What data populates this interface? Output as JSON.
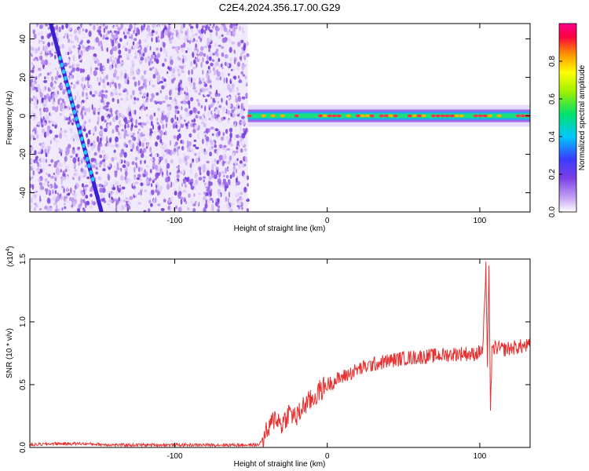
{
  "title": "C2E4.2024.356.17.00.G29",
  "chart_data": [
    {
      "type": "heatmap",
      "xlabel": "Height of straight line (km)",
      "ylabel": "Frequency (Hz)",
      "xlim": [
        -195,
        133
      ],
      "ylim": [
        -50,
        48
      ],
      "xticks": [
        -100,
        0,
        100
      ],
      "yticks": [
        -40,
        -20,
        0,
        20,
        40
      ],
      "grid": false,
      "colorbar": {
        "label": "Normalized spectral amplitude",
        "range": [
          0.0,
          1.0
        ],
        "ticks": [
          "0.0",
          "0.2",
          "0.4",
          "0.6",
          "0.8"
        ],
        "colormap": [
          "#ffffff",
          "#7b3fe4",
          "#3040ff",
          "#00d0ff",
          "#00e060",
          "#ffff00",
          "#ff8000",
          "#ff0060",
          "#ff0080"
        ]
      },
      "features": {
        "noise_region_x": [
          -195,
          -52
        ],
        "diagonal_streak": [
          [
            -182,
            50
          ],
          [
            -148,
            -50
          ]
        ],
        "carrier_band": {
          "x": [
            -52,
            133
          ],
          "frequency": 0
        }
      }
    },
    {
      "type": "line",
      "xlabel": "Height of straight line (km)",
      "ylabel": "SNR (10 * v/v)",
      "exponent_label": "(x10",
      "exponent_power": "4",
      "exponent_close": ")",
      "xlim": [
        -195,
        133
      ],
      "ylim": [
        0,
        1.5
      ],
      "xticks": [
        -100,
        0,
        100
      ],
      "yticks": [
        "0.0",
        "0.5",
        "1.0",
        "1.5"
      ],
      "grid": false,
      "color": "#e83030",
      "x": [
        -195,
        -180,
        -160,
        -140,
        -120,
        -100,
        -80,
        -60,
        -45,
        -38,
        -34,
        -30,
        -25,
        -20,
        -15,
        -10,
        -5,
        0,
        10,
        20,
        30,
        40,
        50,
        60,
        70,
        80,
        90,
        95,
        100,
        102,
        104,
        105,
        106,
        107,
        108,
        110,
        115,
        120,
        125,
        133
      ],
      "y": [
        0.02,
        0.03,
        0.03,
        0.02,
        0.02,
        0.02,
        0.02,
        0.02,
        0.02,
        0.15,
        0.25,
        0.18,
        0.28,
        0.24,
        0.34,
        0.38,
        0.45,
        0.5,
        0.56,
        0.62,
        0.66,
        0.69,
        0.71,
        0.72,
        0.73,
        0.74,
        0.75,
        0.74,
        0.76,
        0.78,
        1.42,
        0.6,
        1.5,
        0.3,
        0.75,
        0.8,
        0.78,
        0.79,
        0.8,
        0.81
      ],
      "noise_amplitude": 0.06
    }
  ]
}
